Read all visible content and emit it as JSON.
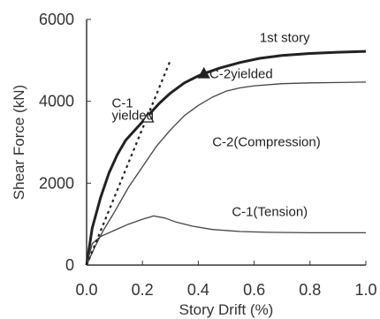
{
  "chart_data": {
    "type": "line",
    "xlabel": "Story Drift (%)",
    "ylabel": "Shear Force (kN)",
    "xlim": [
      0.0,
      1.0
    ],
    "ylim": [
      0,
      6000
    ],
    "xticks": [
      "0.0",
      "0.2",
      "0.4",
      "0.6",
      "0.8",
      "1.0"
    ],
    "yticks": [
      "0",
      "2000",
      "4000",
      "6000"
    ],
    "grid": false,
    "series": [
      {
        "name": "1st story",
        "style": "thick",
        "x": [
          0.0,
          0.02,
          0.05,
          0.08,
          0.11,
          0.14,
          0.18,
          0.22,
          0.26,
          0.3,
          0.35,
          0.4,
          0.43,
          0.48,
          0.55,
          0.62,
          0.7,
          0.8,
          0.9,
          1.0
        ],
        "y": [
          0,
          900,
          1650,
          2250,
          2700,
          3050,
          3350,
          3650,
          3950,
          4200,
          4450,
          4620,
          4700,
          4820,
          4950,
          5050,
          5120,
          5170,
          5200,
          5220
        ]
      },
      {
        "name": "C-2(Compression)",
        "style": "thin",
        "x": [
          0.0,
          0.03,
          0.06,
          0.1,
          0.15,
          0.2,
          0.25,
          0.3,
          0.35,
          0.4,
          0.45,
          0.5,
          0.55,
          0.6,
          0.7,
          0.8,
          0.9,
          1.0
        ],
        "y": [
          0,
          450,
          850,
          1300,
          1900,
          2400,
          2900,
          3300,
          3650,
          3900,
          4100,
          4250,
          4330,
          4380,
          4430,
          4450,
          4460,
          4470
        ]
      },
      {
        "name": "C-1(Tension)",
        "style": "thin",
        "x": [
          0.0,
          0.02,
          0.05,
          0.1,
          0.15,
          0.2,
          0.24,
          0.28,
          0.32,
          0.38,
          0.45,
          0.55,
          0.65,
          0.8,
          1.0
        ],
        "y": [
          0,
          520,
          700,
          850,
          1000,
          1120,
          1200,
          1150,
          1050,
          950,
          870,
          820,
          800,
          790,
          790
        ]
      },
      {
        "name": "",
        "style": "dotted",
        "x": [
          0.0,
          0.3
        ],
        "y": [
          0,
          5000
        ]
      }
    ],
    "markers": [
      {
        "label": "C-1 yielded",
        "shape": "triangle-open",
        "x": 0.22,
        "y": 3600
      },
      {
        "label": "C-2yielded",
        "shape": "triangle-filled",
        "x": 0.42,
        "y": 4680
      }
    ],
    "annotations": [
      {
        "text": "1st story",
        "x": 0.62,
        "y": 5450
      },
      {
        "text": "C-1",
        "x": 0.09,
        "y": 3850
      },
      {
        "text": "yielded",
        "x": 0.09,
        "y": 3550
      },
      {
        "text": "C-2yielded",
        "x": 0.44,
        "y": 4560
      },
      {
        "text": "C-2(Compression)",
        "x": 0.45,
        "y": 2900
      },
      {
        "text": "C-1(Tension)",
        "x": 0.52,
        "y": 1200
      }
    ]
  }
}
